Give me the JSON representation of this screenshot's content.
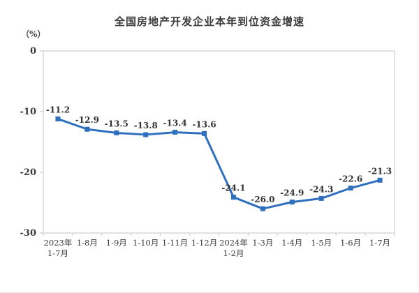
{
  "title": "全国房地产开发企业本年到位资金增速",
  "y_axis_unit": "（%）",
  "colors": {
    "line": "#2e6fbe",
    "axis": "#d7d7d7",
    "text": "#3a3a3a",
    "label_text": "#333333"
  },
  "chart_data": {
    "type": "line",
    "title": "全国房地产开发企业本年到位资金增速",
    "ylabel": "（%）",
    "xlabel": "",
    "grid": false,
    "legend_position": "none",
    "ylim": [
      -30,
      0
    ],
    "y_ticks": [
      "0",
      "-10",
      "-20",
      "-30"
    ],
    "y_tick_values": [
      0,
      -10,
      -20,
      -30
    ],
    "categories": [
      [
        "2023年",
        "1-7月"
      ],
      [
        "1-8月"
      ],
      [
        "1-9月"
      ],
      [
        "1-10月"
      ],
      [
        "1-11月"
      ],
      [
        "1-12月"
      ],
      [
        "2024年",
        "1-2月"
      ],
      [
        "1-3月"
      ],
      [
        "1-4月"
      ],
      [
        "1-5月"
      ],
      [
        "1-6月"
      ],
      [
        "1-7月"
      ]
    ],
    "values": [
      -11.2,
      -12.9,
      -13.5,
      -13.8,
      -13.4,
      -13.6,
      -24.1,
      -26.0,
      -24.9,
      -24.3,
      -22.6,
      -21.3
    ],
    "point_labels": [
      "-11.2",
      "-12.9",
      "-13.5",
      "-13.8",
      "-13.4",
      "-13.6",
      "-24.1",
      "-26.0",
      "-24.9",
      "-24.3",
      "-22.6",
      "-21.3"
    ]
  }
}
